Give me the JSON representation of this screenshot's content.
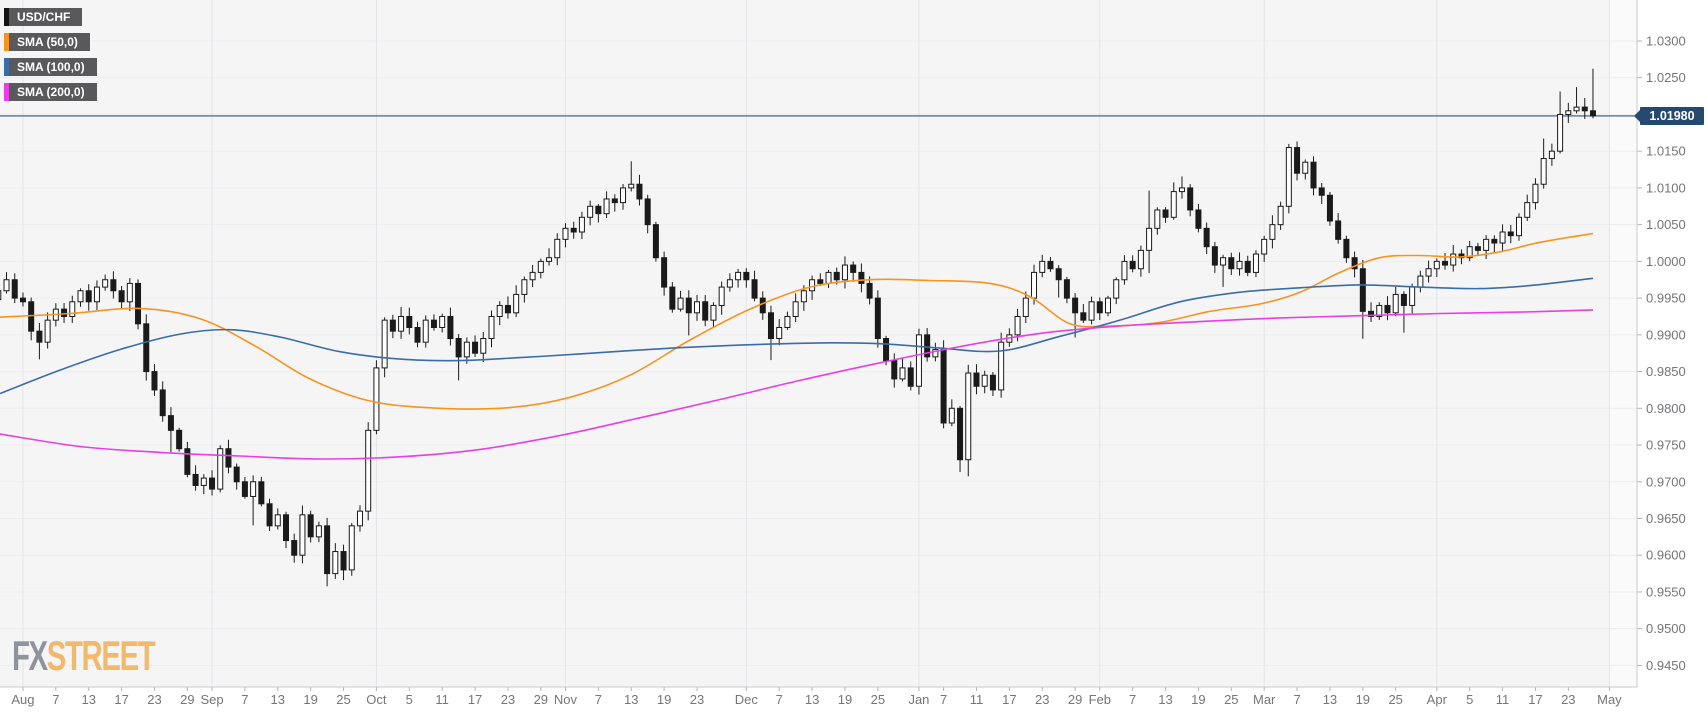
{
  "window_title": "USD/CHF daily chart with SMA overlays",
  "legend": {
    "items": [
      {
        "label": "USD/CHF",
        "color": "#141414"
      },
      {
        "label": "SMA (50,0)",
        "color": "#f79420"
      },
      {
        "label": "SMA (100,0)",
        "color": "#3a6ca8"
      },
      {
        "label": "SMA (200,0)",
        "color": "#e83ee8"
      }
    ],
    "box_bg": "#59595b",
    "text_color": "#ffffff"
  },
  "watermark": {
    "fx": "FX",
    "street": "STREET"
  },
  "last_price": {
    "label": "1.01980",
    "value": 1.0198
  },
  "colors": {
    "plot_bg": "#f5f5f6",
    "future_band_bg": "#fafafb",
    "grid_h": "#ededf0",
    "grid_v": "#e5e5e9",
    "axis_text": "#75757a",
    "tick": "#b3b3b8",
    "border": "#c9c9ce",
    "candle_up_fill": "#ffffff",
    "candle_down_fill": "#1a1a1a",
    "candle_stroke": "#1a1a1a",
    "price_line": "#31567d",
    "price_tag_bg": "#26496f",
    "price_tag_text": "#ffffff"
  },
  "y_axis": {
    "min": 0.945,
    "max": 1.03,
    "step": 0.005,
    "labels": [
      "1.0300",
      "1.0250",
      "1.0200",
      "1.0150",
      "1.0100",
      "1.0050",
      "1.0000",
      "0.9950",
      "0.9900",
      "0.9850",
      "0.9800",
      "0.9750",
      "0.9700",
      "0.9650",
      "0.9600",
      "0.9550",
      "0.9500",
      "0.9450"
    ]
  },
  "x_axis": {
    "ticks": [
      {
        "label": "Aug",
        "i": 3,
        "month": true
      },
      {
        "label": "7",
        "i": 7
      },
      {
        "label": "13",
        "i": 11
      },
      {
        "label": "17",
        "i": 15
      },
      {
        "label": "23",
        "i": 19
      },
      {
        "label": "29",
        "i": 23
      },
      {
        "label": "Sep",
        "i": 26,
        "month": true
      },
      {
        "label": "7",
        "i": 30
      },
      {
        "label": "13",
        "i": 34
      },
      {
        "label": "19",
        "i": 38
      },
      {
        "label": "25",
        "i": 42
      },
      {
        "label": "Oct",
        "i": 46,
        "month": true
      },
      {
        "label": "5",
        "i": 50
      },
      {
        "label": "11",
        "i": 54
      },
      {
        "label": "17",
        "i": 58
      },
      {
        "label": "23",
        "i": 62
      },
      {
        "label": "29",
        "i": 66
      },
      {
        "label": "Nov",
        "i": 69,
        "month": true
      },
      {
        "label": "7",
        "i": 73
      },
      {
        "label": "13",
        "i": 77
      },
      {
        "label": "19",
        "i": 81
      },
      {
        "label": "23",
        "i": 85
      },
      {
        "label": "Dec",
        "i": 91,
        "month": true
      },
      {
        "label": "7",
        "i": 95
      },
      {
        "label": "13",
        "i": 99
      },
      {
        "label": "19",
        "i": 103
      },
      {
        "label": "25",
        "i": 107
      },
      {
        "label": "Jan",
        "i": 112,
        "month": true
      },
      {
        "label": "7",
        "i": 115
      },
      {
        "label": "11",
        "i": 119
      },
      {
        "label": "17",
        "i": 123
      },
      {
        "label": "23",
        "i": 127
      },
      {
        "label": "29",
        "i": 131
      },
      {
        "label": "Feb",
        "i": 134,
        "month": true
      },
      {
        "label": "7",
        "i": 138
      },
      {
        "label": "13",
        "i": 142
      },
      {
        "label": "19",
        "i": 146
      },
      {
        "label": "25",
        "i": 150
      },
      {
        "label": "Mar",
        "i": 154,
        "month": true
      },
      {
        "label": "7",
        "i": 158
      },
      {
        "label": "13",
        "i": 162
      },
      {
        "label": "19",
        "i": 166
      },
      {
        "label": "25",
        "i": 170
      },
      {
        "label": "Apr",
        "i": 175,
        "month": true
      },
      {
        "label": "5",
        "i": 179
      },
      {
        "label": "11",
        "i": 183
      },
      {
        "label": "17",
        "i": 187
      },
      {
        "label": "23",
        "i": 191
      },
      {
        "label": "May",
        "i": 196,
        "month": true
      }
    ]
  },
  "chart_data": {
    "type": "candlestick",
    "symbol": "USD/CHF",
    "title": "USD/CHF with SMA(50), SMA(100), SMA(200)",
    "ylim": [
      0.945,
      1.03
    ],
    "grid": true,
    "legend_position": "top-left",
    "last_price_line": 1.0198,
    "closes": [
      0.996,
      0.9975,
      0.995,
      0.9945,
      0.9905,
      0.989,
      0.992,
      0.9935,
      0.9925,
      0.9945,
      0.996,
      0.9945,
      0.9965,
      0.9975,
      0.996,
      0.9945,
      0.997,
      0.9915,
      0.985,
      0.9825,
      0.979,
      0.977,
      0.9745,
      0.971,
      0.9695,
      0.9705,
      0.969,
      0.9745,
      0.972,
      0.97,
      0.968,
      0.97,
      0.967,
      0.964,
      0.9655,
      0.962,
      0.96,
      0.9655,
      0.9625,
      0.964,
      0.9575,
      0.9605,
      0.958,
      0.964,
      0.966,
      0.977,
      0.9855,
      0.992,
      0.9905,
      0.9925,
      0.991,
      0.989,
      0.992,
      0.991,
      0.9925,
      0.9895,
      0.987,
      0.989,
      0.9875,
      0.9895,
      0.9925,
      0.994,
      0.993,
      0.9955,
      0.9975,
      0.9985,
      1.0,
      1.0005,
      1.003,
      1.0045,
      1.004,
      1.006,
      1.0075,
      1.0065,
      1.0085,
      1.008,
      1.01,
      1.0105,
      1.0085,
      1.005,
      1.0005,
      0.9965,
      0.9935,
      0.995,
      0.993,
      0.9945,
      0.992,
      0.994,
      0.9965,
      0.9975,
      0.9985,
      0.9975,
      0.995,
      0.993,
      0.9895,
      0.991,
      0.9925,
      0.9945,
      0.996,
      0.9975,
      0.997,
      0.9985,
      0.9975,
      0.9995,
      0.9985,
      0.997,
      0.995,
      0.9895,
      0.9865,
      0.984,
      0.9855,
      0.983,
      0.99,
      0.987,
      0.988,
      0.978,
      0.98,
      0.973,
      0.9848,
      0.983,
      0.9845,
      0.9825,
      0.989,
      0.99,
      0.9925,
      0.995,
      0.9985,
      1.0,
      0.999,
      0.9975,
      0.995,
      0.993,
      0.992,
      0.9945,
      0.993,
      0.995,
      0.9975,
      1.0,
      0.999,
      1.0015,
      1.0045,
      1.007,
      1.006,
      1.0095,
      1.01,
      1.007,
      1.0045,
      1.002,
      0.9995,
      1.0005,
      0.999,
      1.0,
      0.9985,
      1.001,
      1.003,
      1.005,
      1.0075,
      1.0155,
      1.012,
      1.0135,
      1.01,
      1.009,
      1.0055,
      1.003,
      1.0005,
      0.999,
      0.9932,
      0.9925,
      0.994,
      0.993,
      0.9955,
      0.994,
      0.9965,
      0.998,
      0.999,
      1.0,
      0.9995,
      1.001,
      1.0005,
      1.002,
      1.0015,
      1.003,
      1.0025,
      1.004,
      1.0035,
      1.006,
      1.008,
      1.0105,
      1.014,
      1.015,
      1.02,
      1.0205,
      1.021,
      1.0205,
      1.0198
    ],
    "wick_overrides": {
      "5": {
        "low": 0.0015
      },
      "21": {
        "low": 0.0022
      },
      "31": {
        "low": 0.003
      },
      "40": {
        "low": 0.001
      },
      "42": {
        "low": 0.001
      },
      "56": {
        "low": 0.002
      },
      "77": {
        "high": 0.002
      },
      "84": {
        "low": 0.0018
      },
      "94": {
        "low": 0.0022
      },
      "117": {
        "low": 0.0013
      },
      "118": {
        "low": 0.0016
      },
      "129": {
        "low": 0.0018
      },
      "131": {
        "low": 0.003
      },
      "140": {
        "high": 0.0045,
        "low": 0.0025
      },
      "144": {
        "high": 0.0012
      },
      "149": {
        "low": 0.0025
      },
      "166": {
        "low": 0.003
      },
      "171": {
        "low": 0.0025
      },
      "188": {
        "high": 0.0018
      },
      "190": {
        "high": 0.0028
      },
      "192": {
        "high": 0.0018
      },
      "194": {
        "high": 0.0046
      }
    },
    "sma_series": [
      {
        "name": "SMA (50,0)",
        "color": "#f79420",
        "points": [
          [
            0,
            0.9924
          ],
          [
            70,
            0.9929
          ],
          [
            140,
            0.9936
          ],
          [
            200,
            0.9922
          ],
          [
            255,
            0.9885
          ],
          [
            310,
            0.984
          ],
          [
            370,
            0.981
          ],
          [
            440,
            0.98
          ],
          [
            510,
            0.9801
          ],
          [
            570,
            0.9815
          ],
          [
            630,
            0.9845
          ],
          [
            690,
            0.9893
          ],
          [
            750,
            0.9935
          ],
          [
            810,
            0.9965
          ],
          [
            870,
            0.9975
          ],
          [
            930,
            0.9974
          ],
          [
            990,
            0.997
          ],
          [
            1030,
            0.9952
          ],
          [
            1070,
            0.9915
          ],
          [
            1110,
            0.9912
          ],
          [
            1160,
            0.9917
          ],
          [
            1210,
            0.9932
          ],
          [
            1260,
            0.9942
          ],
          [
            1300,
            0.9958
          ],
          [
            1340,
            0.9985
          ],
          [
            1380,
            1.0005
          ],
          [
            1420,
            1.0008
          ],
          [
            1460,
            1.0006
          ],
          [
            1500,
            1.0013
          ],
          [
            1540,
            1.0026
          ],
          [
            1593,
            1.0038
          ]
        ]
      },
      {
        "name": "SMA (100,0)",
        "color": "#3a6ca8",
        "points": [
          [
            0,
            0.982
          ],
          [
            60,
            0.9852
          ],
          [
            120,
            0.988
          ],
          [
            180,
            0.9901
          ],
          [
            230,
            0.9907
          ],
          [
            280,
            0.9897
          ],
          [
            340,
            0.9877
          ],
          [
            400,
            0.9867
          ],
          [
            460,
            0.9865
          ],
          [
            520,
            0.9869
          ],
          [
            580,
            0.9874
          ],
          [
            660,
            0.9881
          ],
          [
            740,
            0.9886
          ],
          [
            820,
            0.9889
          ],
          [
            880,
            0.9888
          ],
          [
            940,
            0.9882
          ],
          [
            1000,
            0.9878
          ],
          [
            1060,
            0.9898
          ],
          [
            1120,
            0.992
          ],
          [
            1180,
            0.9945
          ],
          [
            1240,
            0.9958
          ],
          [
            1300,
            0.9964
          ],
          [
            1360,
            0.9968
          ],
          [
            1420,
            0.9965
          ],
          [
            1480,
            0.9963
          ],
          [
            1530,
            0.9967
          ],
          [
            1593,
            0.9977
          ]
        ]
      },
      {
        "name": "SMA (200,0)",
        "color": "#e83ee8",
        "points": [
          [
            0,
            0.9765
          ],
          [
            80,
            0.9748
          ],
          [
            160,
            0.974
          ],
          [
            240,
            0.9735
          ],
          [
            320,
            0.9731
          ],
          [
            400,
            0.9734
          ],
          [
            480,
            0.9744
          ],
          [
            560,
            0.9763
          ],
          [
            640,
            0.9787
          ],
          [
            720,
            0.9812
          ],
          [
            800,
            0.9838
          ],
          [
            880,
            0.9862
          ],
          [
            960,
            0.9884
          ],
          [
            1040,
            0.9902
          ],
          [
            1120,
            0.9912
          ],
          [
            1200,
            0.9918
          ],
          [
            1280,
            0.9923
          ],
          [
            1360,
            0.9926
          ],
          [
            1440,
            0.9929
          ],
          [
            1520,
            0.9931
          ],
          [
            1593,
            0.9934
          ]
        ]
      }
    ]
  }
}
